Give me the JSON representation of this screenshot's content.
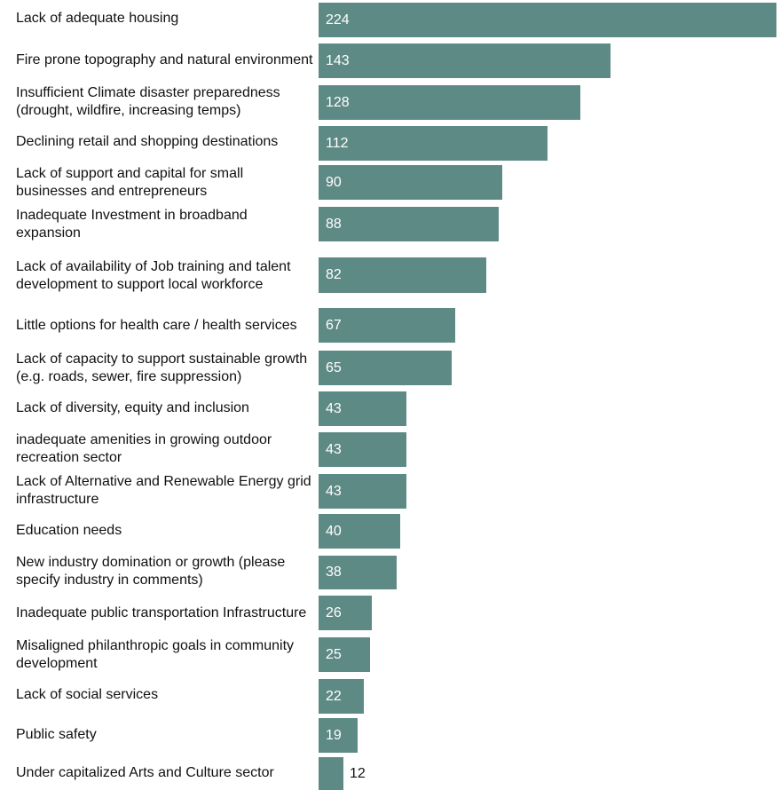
{
  "chart_data": {
    "type": "bar",
    "orientation": "horizontal",
    "title": "",
    "xlabel": "",
    "ylabel": "",
    "xlim": [
      0,
      224
    ],
    "bar_color": "#5e8a86",
    "grid": false,
    "categories": [
      "Lack of adequate housing",
      "Fire prone topography and natural environment",
      "Insufficient Climate disaster preparedness (drought, wildfire, increasing temps)",
      "Declining retail and shopping destinations",
      "Lack of support and capital for small businesses and entrepreneurs",
      "Inadequate Investment in broadband expansion",
      "Lack of availability of Job training and talent development to support local workforce",
      "Little options for health care / health services",
      "Lack of capacity to support sustainable growth (e.g. roads, sewer, fire suppression)",
      "Lack of diversity, equity and inclusion",
      "inadequate amenities in growing outdoor recreation sector",
      "Lack of Alternative and Renewable Energy grid infrastructure",
      "Education needs",
      "New industry domination or growth (please specify industry in comments)",
      "Inadequate public transportation Infrastructure",
      "Misaligned philanthropic goals in community development",
      "Lack of social services",
      "Public safety",
      "Under capitalized Arts and Culture sector"
    ],
    "values": [
      224,
      143,
      128,
      112,
      90,
      88,
      82,
      67,
      65,
      43,
      43,
      43,
      40,
      38,
      26,
      25,
      22,
      19,
      12
    ]
  }
}
